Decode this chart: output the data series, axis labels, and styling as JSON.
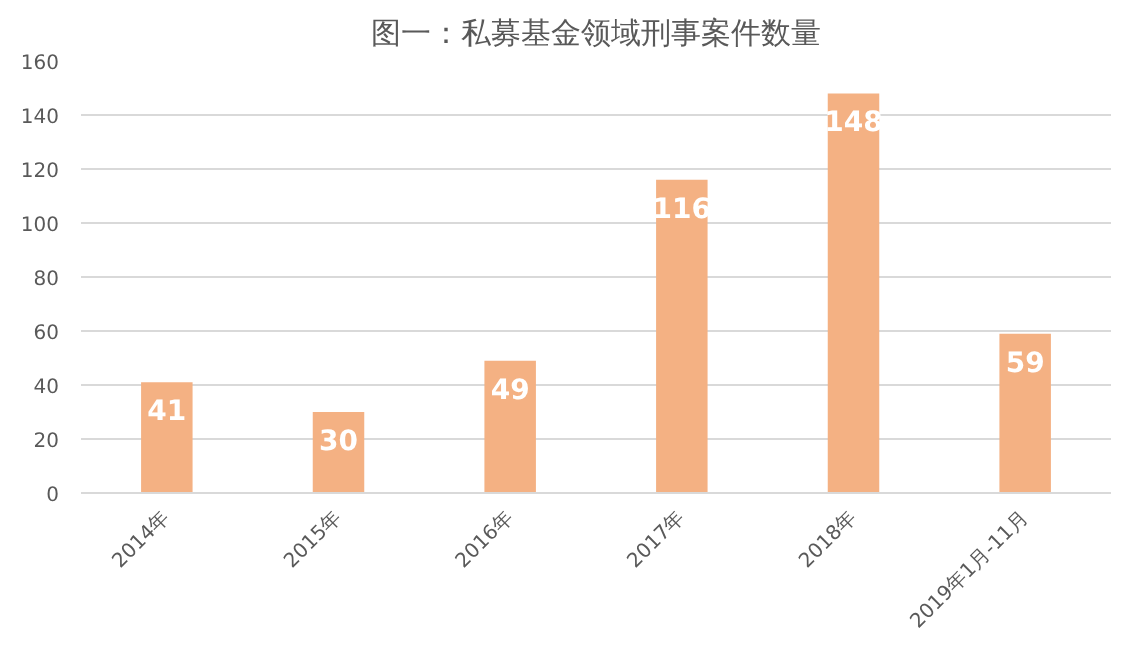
{
  "chart_data": {
    "type": "bar",
    "title": "图一：私募基金领域刑事案件数量",
    "categories": [
      "2014年",
      "2015年",
      "2016年",
      "2017年",
      "2018年",
      "2019年1月-11月"
    ],
    "values": [
      41,
      30,
      49,
      116,
      148,
      59
    ],
    "color": "#f4b183",
    "ylim": [
      0,
      160
    ],
    "yticks": [
      0,
      20,
      40,
      60,
      80,
      100,
      120,
      140,
      160
    ],
    "grid": "y",
    "data_labels": true
  }
}
